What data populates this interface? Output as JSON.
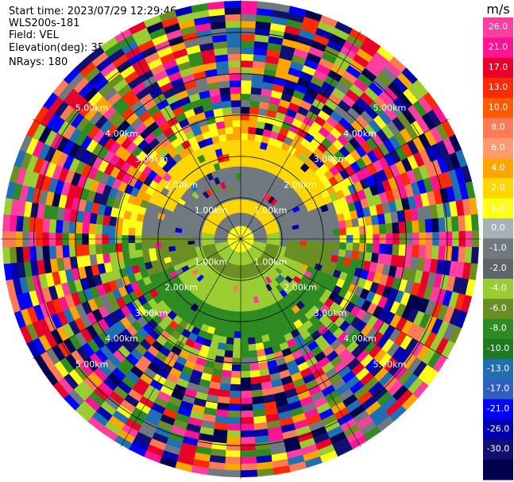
{
  "header": {
    "start_time": "Start time: 2023/07/29 12:29:46",
    "instrument": "WLS200s-181",
    "field": "Field: VEL",
    "elevation": "Elevation(deg): 35.30",
    "nrays": "NRays: 180"
  },
  "chart_data": {
    "type": "ppi_polar",
    "field": "VEL",
    "units": "m/s",
    "range_rings_km": [
      1.0,
      2.0,
      3.0,
      4.0,
      5.0
    ],
    "ring_labels": [
      "1.00km",
      "2.00km",
      "3.00km",
      "4.00km",
      "5.00km"
    ],
    "max_range_km": 5.8,
    "spokes_deg": [
      0,
      30,
      60,
      90,
      120,
      150,
      180,
      210,
      240,
      270,
      300,
      330
    ],
    "nrays": 180,
    "colorbar": {
      "label": "m/s",
      "ticks": [
        "26.0",
        "21.0",
        "17.0",
        "13.0",
        "10.0",
        "8.0",
        "6.0",
        "4.0",
        "2.0",
        "1.0",
        "0.0",
        "-1.0",
        "-2.0",
        "-4.0",
        "-6.0",
        "-8.0",
        "-10.0",
        "-13.0",
        "-17.0",
        "-21.0",
        "-26.0",
        "-30.0"
      ],
      "colors": [
        "#ff3fa0",
        "#ff1493",
        "#e8002a",
        "#ff2a00",
        "#ff5a00",
        "#ff7a55",
        "#ff9a70",
        "#ffa500",
        "#ffd700",
        "#ffff1a",
        "#a8b0b8",
        "#707880",
        "#606668",
        "#9acd32",
        "#6b8e23",
        "#2e8b22",
        "#1f7a1f",
        "#1f6fb4",
        "#2f5fbf",
        "#0000ff",
        "#0000b0",
        "#101070",
        "#000050"
      ]
    }
  }
}
